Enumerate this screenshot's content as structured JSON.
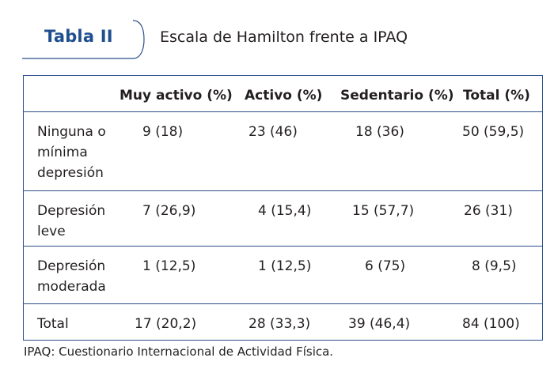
{
  "table": {
    "tag": "Tabla II",
    "title": "Escala de Hamilton frente a IPAQ",
    "headers": [
      "",
      "Muy activo (%)",
      "Activo (%)",
      "Sedentario (%)",
      "Total (%)"
    ],
    "rows": [
      {
        "label": [
          "Ninguna o",
          "mínima",
          "depresión"
        ],
        "values": [
          "9 (18)",
          "23 (46)",
          "18 (36)",
          "50 (59,5)"
        ]
      },
      {
        "label": [
          "Depresión",
          "leve"
        ],
        "values": [
          "7 (26,9)",
          "4 (15,4)",
          "15 (57,7)",
          "26 (31)"
        ]
      },
      {
        "label": [
          "Depresión",
          "moderada"
        ],
        "values": [
          "1 (12,5)",
          "1 (12,5)",
          "6 (75)",
          "8 (9,5)"
        ]
      },
      {
        "label": [
          "Total"
        ],
        "values": [
          "17 (20,2)",
          "28 (33,3)",
          "39 (46,4)",
          "84 (100)"
        ]
      }
    ],
    "footnote": "IPAQ: Cuestionario Internacional de Actividad Física.",
    "colors": {
      "accent": "#1f4f8f",
      "rule": "#2b4f8a",
      "text": "#231f20"
    }
  }
}
